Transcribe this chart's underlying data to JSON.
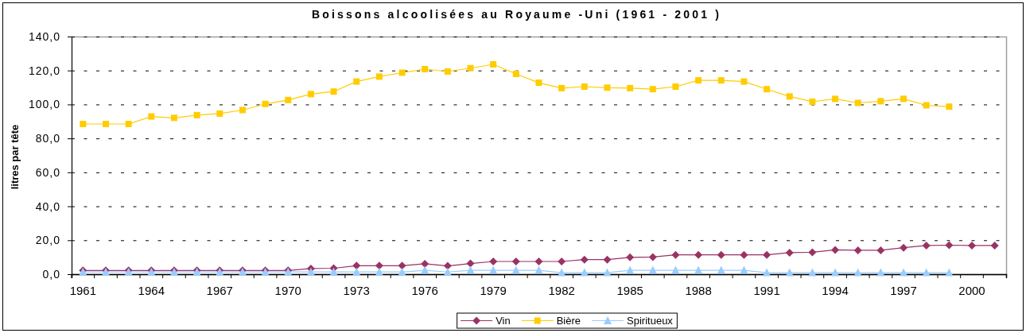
{
  "chart_data": {
    "type": "line",
    "title": "Boissons alcoolisées au Royaume -Uni (1961 - 2001 )",
    "ylabel": "litres par tête",
    "categories": [
      "1961",
      null,
      null,
      "1964",
      null,
      null,
      "1967",
      null,
      null,
      "1970",
      null,
      null,
      "1973",
      null,
      null,
      "1976",
      null,
      null,
      "1979",
      null,
      null,
      "1982",
      null,
      null,
      "1985",
      null,
      null,
      "1988",
      null,
      null,
      "1991",
      null,
      null,
      "1994",
      null,
      null,
      "1997",
      null,
      null,
      "2000",
      null
    ],
    "series": [
      {
        "name": "Vin",
        "color": "#993366",
        "marker": "diamond",
        "values": [
          2.2,
          2.2,
          2.2,
          2.2,
          2.2,
          2.2,
          2.2,
          2.2,
          2.2,
          2.2,
          3.3,
          3.5,
          5.0,
          5.0,
          5.0,
          6.1,
          4.9,
          6.3,
          7.5,
          7.5,
          7.5,
          7.5,
          8.6,
          8.6,
          9.9,
          10.1,
          11.4,
          11.4,
          11.4,
          11.4,
          11.4,
          12.7,
          12.9,
          14.3,
          14.1,
          14.1,
          15.6,
          16.9,
          17.1,
          16.9,
          16.9
        ]
      },
      {
        "name": "Bière",
        "color": "#ffcc00",
        "marker": "square",
        "values": [
          88.5,
          88.5,
          88.5,
          92.9,
          92.1,
          93.7,
          94.6,
          96.7,
          100.3,
          102.6,
          106.1,
          107.6,
          113.5,
          116.4,
          118.7,
          120.8,
          119.4,
          121.4,
          123.6,
          118.0,
          112.8,
          109.6,
          110.5,
          109.9,
          109.6,
          109.0,
          110.5,
          114.2,
          114.2,
          113.5,
          109.0,
          104.7,
          101.6,
          103.3,
          100.9,
          101.9,
          103.3,
          99.5,
          98.7,
          null,
          null
        ]
      },
      {
        "name": "Spiritueux",
        "color": "#99ccff",
        "marker": "triangle",
        "values": [
          1.3,
          1.3,
          1.3,
          1.3,
          1.3,
          1.3,
          1.3,
          1.3,
          1.3,
          1.3,
          1.3,
          1.3,
          1.3,
          1.3,
          1.3,
          2.3,
          1.3,
          2.3,
          2.3,
          2.3,
          2.3,
          0.9,
          0.9,
          0.9,
          2.3,
          2.3,
          2.3,
          2.3,
          2.3,
          2.3,
          0.9,
          0.9,
          0.9,
          0.9,
          0.9,
          0.9,
          0.9,
          0.9,
          0.9,
          null,
          null
        ]
      }
    ],
    "ylim": [
      0,
      140
    ],
    "yticks": [
      {
        "value": 0,
        "label": "0,0"
      },
      {
        "value": 20,
        "label": "20,0"
      },
      {
        "value": 40,
        "label": "40,0"
      },
      {
        "value": 60,
        "label": "60,0"
      },
      {
        "value": 80,
        "label": "80,0"
      },
      {
        "value": 100,
        "label": "100,0"
      },
      {
        "value": 120,
        "label": "120,0"
      },
      {
        "value": 140,
        "label": "140,0"
      }
    ],
    "grid": "y",
    "legend": "bottom",
    "line_style": "solid"
  }
}
